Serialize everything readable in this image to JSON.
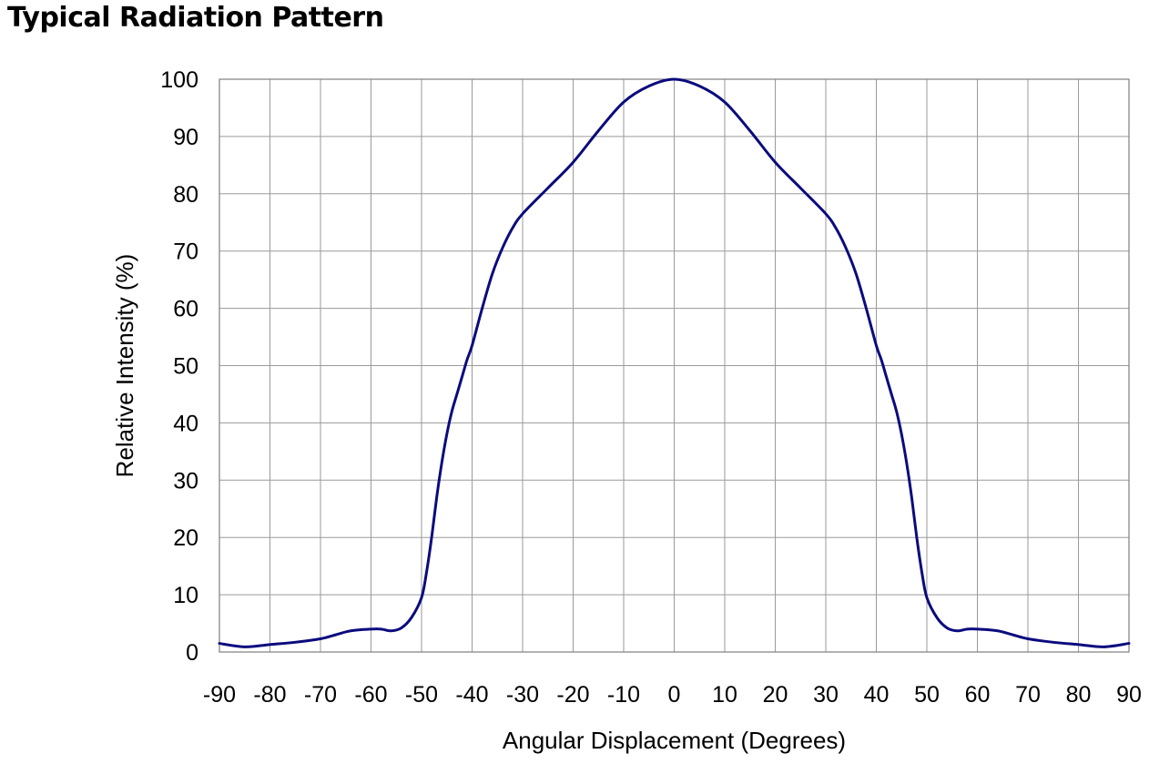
{
  "title": "Typical Radiation Pattern",
  "chart_data": {
    "type": "line",
    "title": "Typical Radiation Pattern",
    "xlabel": "Angular Displacement (Degrees)",
    "ylabel": "Relative Intensity (%)",
    "xlim": [
      -90,
      90
    ],
    "ylim": [
      0,
      100
    ],
    "xticks": [
      -90,
      -80,
      -70,
      -60,
      -50,
      -40,
      -30,
      -20,
      -10,
      0,
      10,
      20,
      30,
      40,
      50,
      60,
      70,
      80,
      90
    ],
    "yticks": [
      0,
      10,
      20,
      30,
      40,
      50,
      60,
      70,
      80,
      90,
      100
    ],
    "grid": true,
    "line_color": "#0b0b7e",
    "series": [
      {
        "x": [
          -90,
          -85,
          -80,
          -75,
          -70,
          -67,
          -64,
          -60,
          -58,
          -56,
          -54,
          -52,
          -50,
          -49,
          -48,
          -47,
          -46,
          -45,
          -44,
          -43,
          -42,
          -41,
          -40,
          -38,
          -36,
          -34,
          -32,
          -30,
          -25,
          -20,
          -15,
          -10,
          -5,
          0,
          5,
          10,
          15,
          20,
          25,
          30,
          32,
          34,
          36,
          38,
          40,
          41,
          42,
          43,
          44,
          45,
          46,
          47,
          48,
          49,
          50,
          52,
          54,
          56,
          58,
          60,
          64,
          67,
          70,
          75,
          80,
          85,
          90
        ],
        "y": [
          1.5,
          0.9,
          1.3,
          1.7,
          2.3,
          3.0,
          3.7,
          4.0,
          4.0,
          3.7,
          4.2,
          6.0,
          9.5,
          14,
          20,
          27,
          33,
          38,
          42,
          45,
          48,
          51,
          53.5,
          60,
          66,
          70.5,
          74,
          76.5,
          81,
          85.5,
          91,
          96,
          98.8,
          100,
          98.8,
          96,
          91,
          85.5,
          81,
          76.5,
          74,
          70.5,
          66,
          60,
          53.5,
          51,
          48,
          45,
          42,
          38,
          33,
          27,
          20,
          14,
          9.5,
          6.0,
          4.2,
          3.7,
          4.0,
          4.0,
          3.7,
          3.0,
          2.3,
          1.7,
          1.3,
          0.9,
          1.5
        ]
      }
    ]
  }
}
